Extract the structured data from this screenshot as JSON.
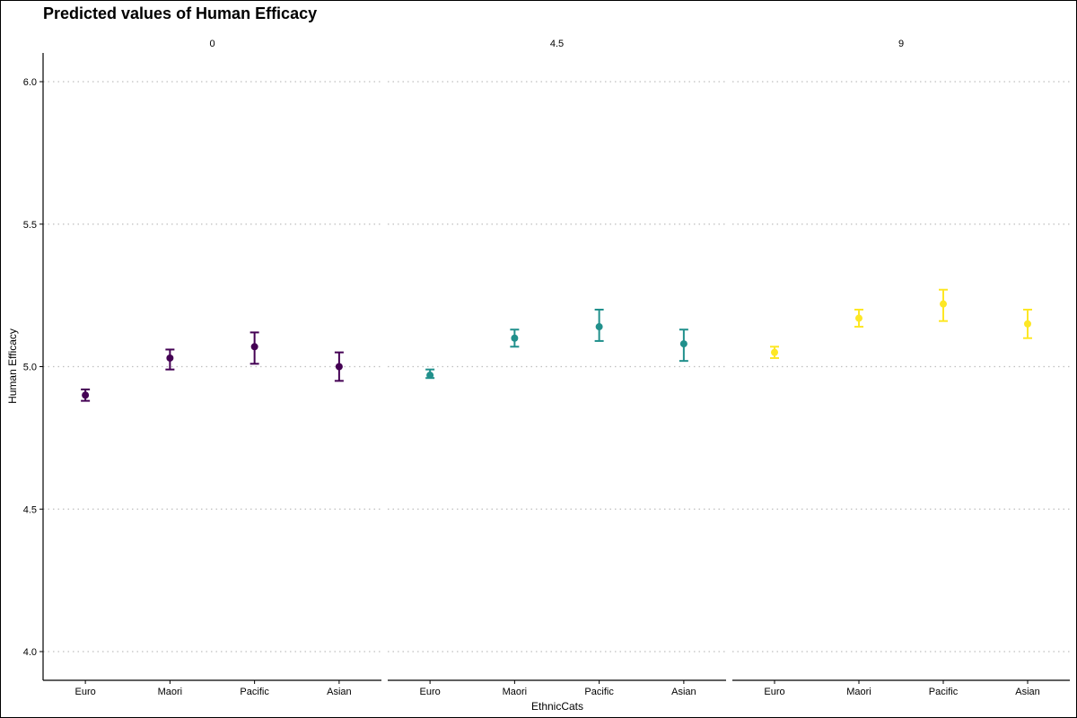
{
  "chart_data": {
    "type": "scatter",
    "title": "Predicted values of Human Efficacy",
    "xlabel": "EthnicCats",
    "ylabel": "Human Efficacy",
    "ylim": [
      3.95,
      6.1
    ],
    "yticks": [
      4.0,
      4.5,
      5.0,
      5.5,
      6.0
    ],
    "ytick_labels": [
      "4.0",
      "4.5",
      "5.0",
      "5.5",
      "6.0"
    ],
    "grid": "horizontal dotted major gridlines",
    "categories": [
      "Euro",
      "Maori",
      "Pacific",
      "Asian"
    ],
    "facets": [
      {
        "label": "0",
        "color": "#440154",
        "points": [
          {
            "category": "Euro",
            "value": 4.9,
            "lower": 4.88,
            "upper": 4.92
          },
          {
            "category": "Maori",
            "value": 5.03,
            "lower": 4.99,
            "upper": 5.06
          },
          {
            "category": "Pacific",
            "value": 5.07,
            "lower": 5.01,
            "upper": 5.12
          },
          {
            "category": "Asian",
            "value": 5.0,
            "lower": 4.95,
            "upper": 5.05
          }
        ]
      },
      {
        "label": "4.5",
        "color": "#21908C",
        "points": [
          {
            "category": "Euro",
            "value": 4.97,
            "lower": 4.96,
            "upper": 4.99
          },
          {
            "category": "Maori",
            "value": 5.1,
            "lower": 5.07,
            "upper": 5.13
          },
          {
            "category": "Pacific",
            "value": 5.14,
            "lower": 5.09,
            "upper": 5.2
          },
          {
            "category": "Asian",
            "value": 5.08,
            "lower": 5.02,
            "upper": 5.13
          }
        ]
      },
      {
        "label": "9",
        "color": "#FDE725",
        "points": [
          {
            "category": "Euro",
            "value": 5.05,
            "lower": 5.03,
            "upper": 5.07
          },
          {
            "category": "Maori",
            "value": 5.17,
            "lower": 5.14,
            "upper": 5.2
          },
          {
            "category": "Pacific",
            "value": 5.22,
            "lower": 5.16,
            "upper": 5.27
          },
          {
            "category": "Asian",
            "value": 5.15,
            "lower": 5.1,
            "upper": 5.2
          }
        ]
      }
    ]
  }
}
